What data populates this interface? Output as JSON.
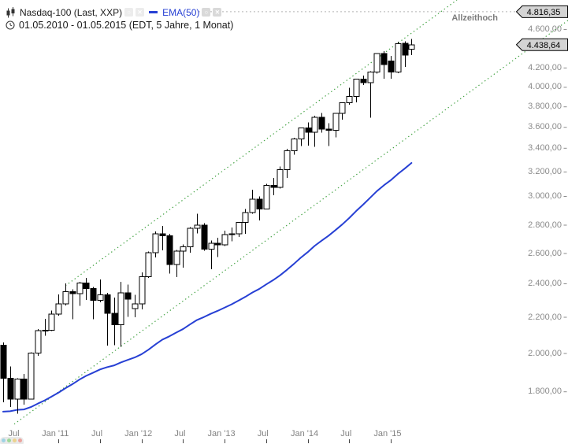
{
  "header": {
    "instrument": "Nasdaq-100 (Last, XXP)",
    "instrument_icon": "candlestick-chart-icon",
    "ema_label": "EMA(50)",
    "date_range": "01.05.2010 - 01.05.2015 (EDT, 5 Jahre, 1 Monat)",
    "buttons": [
      "settings",
      "close",
      "settings",
      "close"
    ]
  },
  "annotations": {
    "all_time_high_text": "Allzeithoch"
  },
  "price_tags": [
    {
      "name": "ath",
      "label": "4.816,35",
      "value": 4816.35
    },
    {
      "name": "last",
      "label": "4.438,64",
      "value": 4438.64
    }
  ],
  "axis": {
    "y_ticks": [
      {
        "label": "4.600,00",
        "price": 4600
      },
      {
        "label": "4.200,00",
        "price": 4200
      },
      {
        "label": "4.000,00",
        "price": 4000
      },
      {
        "label": "3.800,00",
        "price": 3800
      },
      {
        "label": "3.600,00",
        "price": 3600
      },
      {
        "label": "3.400,00",
        "price": 3400
      },
      {
        "label": "3.200,00",
        "price": 3200
      },
      {
        "label": "3.000,00",
        "price": 3000
      },
      {
        "label": "2.800,00",
        "price": 2800
      },
      {
        "label": "2.600,00",
        "price": 2600
      },
      {
        "label": "2.400,00",
        "price": 2400
      },
      {
        "label": "2.200,00",
        "price": 2200
      },
      {
        "label": "2.000,00",
        "price": 2000
      },
      {
        "label": "1.800,00",
        "price": 1800
      }
    ],
    "x_ticks": [
      {
        "label": "Jul",
        "m": 2
      },
      {
        "label": "Jan '11",
        "m": 8
      },
      {
        "label": "Jul",
        "m": 14
      },
      {
        "label": "Jan '12",
        "m": 20
      },
      {
        "label": "Jul",
        "m": 26
      },
      {
        "label": "Jan '13",
        "m": 32
      },
      {
        "label": "Jul",
        "m": 38
      },
      {
        "label": "Jan '14",
        "m": 44
      },
      {
        "label": "Jul",
        "m": 50
      },
      {
        "label": "Jan '15",
        "m": 56
      }
    ],
    "scale": "log"
  },
  "colors": {
    "ema_line": "#2740d4",
    "trendline": "#44a344",
    "ath_line": "#b5b5b5",
    "candle_up_fill": "#ffffff",
    "candle_down_fill": "#000000",
    "candle_border": "#000000",
    "tag_fill": "#d4d4d4",
    "axis_text": "#8a8a8a"
  },
  "corner_widget_dots": [
    "#9fd3e4",
    "#9ed89a",
    "#ecd28e",
    "#eca49e"
  ],
  "chart_data": {
    "type": "candlestick",
    "title": "Nasdaq-100 (Last, XXP)",
    "scale": "log",
    "ylim": [
      1700,
      4900
    ],
    "months": [
      "2010-05",
      "2010-06",
      "2010-07",
      "2010-08",
      "2010-09",
      "2010-10",
      "2010-11",
      "2010-12",
      "2011-01",
      "2011-02",
      "2011-03",
      "2011-04",
      "2011-05",
      "2011-06",
      "2011-07",
      "2011-08",
      "2011-09",
      "2011-10",
      "2011-11",
      "2011-12",
      "2012-01",
      "2012-02",
      "2012-03",
      "2012-04",
      "2012-05",
      "2012-06",
      "2012-07",
      "2012-08",
      "2012-09",
      "2012-10",
      "2012-11",
      "2012-12",
      "2013-01",
      "2013-02",
      "2013-03",
      "2013-04",
      "2013-05",
      "2013-06",
      "2013-07",
      "2013-08",
      "2013-09",
      "2013-10",
      "2013-11",
      "2013-12",
      "2014-01",
      "2014-02",
      "2014-03",
      "2014-04",
      "2014-05",
      "2014-06",
      "2014-07",
      "2014-08",
      "2014-09",
      "2014-10",
      "2014-11",
      "2014-12",
      "2015-01",
      "2015-02",
      "2015-03",
      "2015-04"
    ],
    "open": [
      2044,
      1869,
      1765,
      1865,
      1766,
      2002,
      2124,
      2127,
      2218,
      2277,
      2351,
      2339,
      2404,
      2371,
      2298,
      2332,
      2223,
      2157,
      2345,
      2250,
      2278,
      2445,
      2606,
      2738,
      2724,
      2525,
      2615,
      2645,
      2778,
      2799,
      2630,
      2670,
      2660,
      2731,
      2738,
      2818,
      2887,
      2981,
      2910,
      3090,
      3073,
      3218,
      3377,
      3487,
      3592,
      3553,
      3696,
      3582,
      3571,
      3736,
      3840,
      3904,
      4082,
      4049,
      4158,
      4347,
      4270,
      4155,
      4455,
      4390
    ],
    "high": [
      2059,
      1929,
      1868,
      1890,
      2006,
      2132,
      2190,
      2238,
      2334,
      2403,
      2365,
      2412,
      2438,
      2380,
      2427,
      2344,
      2316,
      2412,
      2395,
      2333,
      2474,
      2613,
      2754,
      2795,
      2738,
      2624,
      2661,
      2786,
      2879,
      2812,
      2690,
      2709,
      2760,
      2783,
      2822,
      2910,
      3053,
      2999,
      3100,
      3150,
      3246,
      3395,
      3500,
      3598,
      3648,
      3710,
      3738,
      3638,
      3740,
      3847,
      3997,
      4088,
      4119,
      4165,
      4347,
      4371,
      4322,
      4470,
      4475,
      4500
    ],
    "low": [
      1751,
      1728,
      1697,
      1739,
      1766,
      1986,
      2096,
      2121,
      2208,
      2268,
      2189,
      2266,
      2301,
      2189,
      2287,
      2042,
      2043,
      2035,
      2203,
      2199,
      2246,
      2438,
      2574,
      2622,
      2465,
      2443,
      2505,
      2605,
      2740,
      2620,
      2494,
      2575,
      2650,
      2683,
      2715,
      2736,
      2877,
      2833,
      2910,
      3009,
      3062,
      3150,
      3343,
      3421,
      3424,
      3414,
      3546,
      3420,
      3503,
      3672,
      3820,
      3846,
      4022,
      3691,
      4139,
      4089,
      4086,
      4143,
      4210,
      4330
    ],
    "close": [
      1869,
      1765,
      1865,
      1766,
      2002,
      2124,
      2127,
      2218,
      2277,
      2351,
      2339,
      2404,
      2371,
      2298,
      2332,
      2223,
      2157,
      2345,
      2307,
      2278,
      2445,
      2606,
      2738,
      2724,
      2525,
      2615,
      2645,
      2778,
      2799,
      2630,
      2670,
      2660,
      2731,
      2738,
      2818,
      2887,
      2981,
      2910,
      3090,
      3073,
      3218,
      3377,
      3487,
      3592,
      3553,
      3696,
      3582,
      3571,
      3736,
      3840,
      3904,
      4082,
      4049,
      4158,
      4347,
      4236,
      4155,
      4450,
      4330,
      4438.64
    ],
    "series": [
      {
        "name": "EMA(50)",
        "type": "line",
        "values": [
          1707,
          1709,
          1715,
          1717,
          1728,
          1744,
          1759,
          1777,
          1796,
          1818,
          1838,
          1861,
          1881,
          1897,
          1914,
          1926,
          1935,
          1951,
          1965,
          1978,
          1996,
          2020,
          2048,
          2074,
          2092,
          2113,
          2133,
          2159,
          2184,
          2201,
          2220,
          2237,
          2256,
          2275,
          2297,
          2320,
          2346,
          2368,
          2396,
          2423,
          2454,
          2490,
          2529,
          2571,
          2609,
          2652,
          2688,
          2723,
          2763,
          2805,
          2848,
          2896,
          2941,
          2989,
          3042,
          3089,
          3131,
          3182,
          3227,
          3275
        ]
      }
    ],
    "trendlines": [
      {
        "name": "upper-channel",
        "from": {
          "month": "2011-02",
          "m": 9,
          "price": 2388
        },
        "to": {
          "month": "2015-04",
          "m": 59,
          "price": 4560
        },
        "style": "dotted",
        "extend_right": true
      },
      {
        "name": "lower-channel",
        "from": {
          "month": "2010-07",
          "m": 2,
          "price": 1660
        },
        "to": {
          "month": "2015-04",
          "m": 59,
          "price": 3530
        },
        "style": "dotted",
        "extend_right": true
      }
    ],
    "hline": {
      "price": 4816.35,
      "label": "Allzeithoch",
      "tag": "4.816,35"
    },
    "last_price": 4438.64
  }
}
